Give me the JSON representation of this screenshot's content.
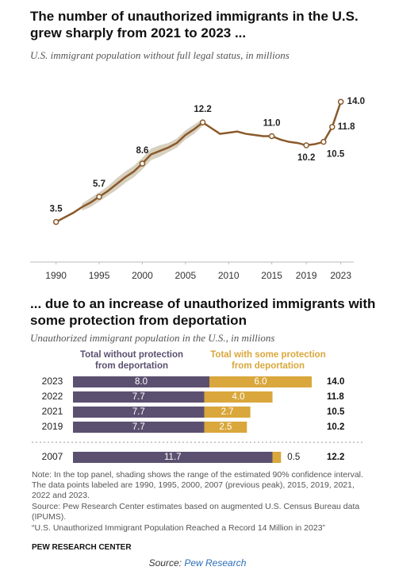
{
  "chart_data": [
    {
      "type": "line",
      "title": "The number of unauthorized immigrants in the U.S. grew sharply from 2021 to 2023 ...",
      "subtitle": "U.S. immigrant population without full legal status, in millions",
      "x": [
        1990,
        1991,
        1992,
        1993,
        1994,
        1995,
        1996,
        1997,
        1998,
        1999,
        2000,
        2001,
        2002,
        2003,
        2004,
        2005,
        2006,
        2007,
        2008,
        2009,
        2010,
        2011,
        2012,
        2013,
        2014,
        2015,
        2016,
        2017,
        2018,
        2019,
        2020,
        2021,
        2022,
        2023
      ],
      "series": [
        {
          "color": "#8a5a2b",
          "values": [
            3.5,
            3.9,
            4.3,
            4.8,
            5.2,
            5.7,
            6.2,
            6.8,
            7.4,
            7.9,
            8.6,
            9.4,
            9.7,
            10.0,
            10.4,
            11.1,
            11.6,
            12.2,
            11.7,
            11.2,
            11.3,
            11.4,
            11.2,
            11.1,
            11.0,
            11.0,
            10.7,
            10.5,
            10.4,
            10.2,
            10.3,
            10.5,
            11.8,
            14.0
          ],
          "value_labels": [
            "3.5",
            null,
            null,
            null,
            null,
            "5.7",
            null,
            null,
            null,
            null,
            "8.6",
            null,
            null,
            null,
            null,
            null,
            null,
            "12.2",
            null,
            null,
            null,
            null,
            null,
            null,
            null,
            "11.0",
            null,
            null,
            null,
            "10.2",
            null,
            "10.5",
            "11.8",
            "14.0"
          ]
        }
      ],
      "ci_low": [
        null,
        null,
        null,
        4.5,
        4.8,
        5.3,
        5.8,
        6.3,
        6.9,
        7.4,
        8.1,
        8.9,
        9.2,
        9.6,
        10.0,
        10.7,
        11.2,
        11.9,
        null,
        null,
        null,
        null,
        null,
        null,
        null,
        null,
        null,
        null,
        null,
        null,
        null,
        null,
        null,
        null
      ],
      "ci_high": [
        null,
        null,
        null,
        5.1,
        5.6,
        6.1,
        6.6,
        7.3,
        7.9,
        8.4,
        9.1,
        9.9,
        10.2,
        10.4,
        10.8,
        11.5,
        12.0,
        12.5,
        null,
        null,
        null,
        null,
        null,
        null,
        null,
        null,
        null,
        null,
        null,
        null,
        null,
        null,
        null,
        null
      ],
      "ci_color": "#d8d0bf",
      "xlim": [
        1987,
        2024.5
      ],
      "xticks": [
        1990,
        1995,
        2000,
        2005,
        2010,
        2015,
        2019,
        2023
      ],
      "ylim": [
        0,
        14.5
      ]
    },
    {
      "type": "stacked-bar",
      "title": "... due to an increase of unauthorized immigrants with some protection from deportation",
      "subtitle": "Unauthorized immigrant population in the U.S., in millions",
      "categories": [
        "2023",
        "2022",
        "2021",
        "2019",
        "2007"
      ],
      "series": [
        {
          "name": "Total without protection from deportation",
          "color": "#5b5070",
          "values": [
            8.0,
            7.7,
            7.7,
            7.7,
            11.7
          ],
          "value_labels": [
            "8.0",
            "7.7",
            "7.7",
            "7.7",
            "11.7"
          ]
        },
        {
          "name": "Total with some protection from deportation",
          "color": "#d9a73b",
          "values": [
            6.0,
            4.0,
            2.7,
            2.5,
            0.5
          ],
          "value_labels": [
            "6.0",
            "4.0",
            "2.7",
            "2.5",
            "0.5"
          ]
        }
      ],
      "totals": {
        "values": [
          14.0,
          11.8,
          10.5,
          10.2,
          12.2
        ],
        "value_labels": [
          "14.0",
          "11.8",
          "10.5",
          "10.2",
          "12.2"
        ]
      },
      "xlim": [
        0,
        14
      ]
    }
  ],
  "notes": [
    "Note: In the top panel, shading shows the range of the estimated 90% confidence interval. The data points labeled are 1990, 1995, 2000, 2007 (previous peak), 2015, 2019, 2021, 2022 and 2023.",
    "Source: Pew Research Center estimates based on augmented U.S. Census Bureau data (IPUMS).",
    "“U.S. Unauthorized Immigrant Population Reached a Record 14 Million in 2023”"
  ],
  "credit": "PEW RESEARCH CENTER",
  "source_prefix": "Source:",
  "source_link": "Pew Research"
}
